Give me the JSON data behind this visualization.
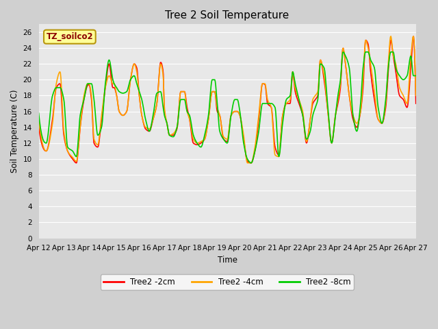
{
  "title": "Tree 2 Soil Temperature",
  "ylabel": "Soil Temperature (C)",
  "xlabel": "Time",
  "ylim": [
    0,
    27
  ],
  "yticks": [
    0,
    2,
    4,
    6,
    8,
    10,
    12,
    14,
    16,
    18,
    20,
    22,
    24,
    26
  ],
  "fig_bg_color": "#d0d0d0",
  "plot_bg_color": "#e8e8e8",
  "grid_color": "#ffffff",
  "annotation_text": "TZ_soilco2",
  "annotation_color": "#8b0000",
  "annotation_bg": "#ffff99",
  "annotation_border": "#b8960c",
  "series": [
    {
      "label": "Tree2 -2cm",
      "color": "#ff0000",
      "lw": 1.2
    },
    {
      "label": "Tree2 -4cm",
      "color": "#ffa500",
      "lw": 1.2
    },
    {
      "label": "Tree2 -8cm",
      "color": "#00cc00",
      "lw": 1.2
    }
  ],
  "xtick_labels": [
    "Apr 12",
    "Apr 13",
    "Apr 14",
    "Apr 15",
    "Apr 16",
    "Apr 17",
    "Apr 18",
    "Apr 19",
    "Apr 20",
    "Apr 21",
    "Apr 22",
    "Apr 23",
    "Apr 24",
    "Apr 25",
    "Apr 26",
    "Apr 27"
  ],
  "xtick_positions": [
    0,
    1,
    2,
    3,
    4,
    5,
    6,
    7,
    8,
    9,
    10,
    11,
    12,
    13,
    14,
    15
  ]
}
